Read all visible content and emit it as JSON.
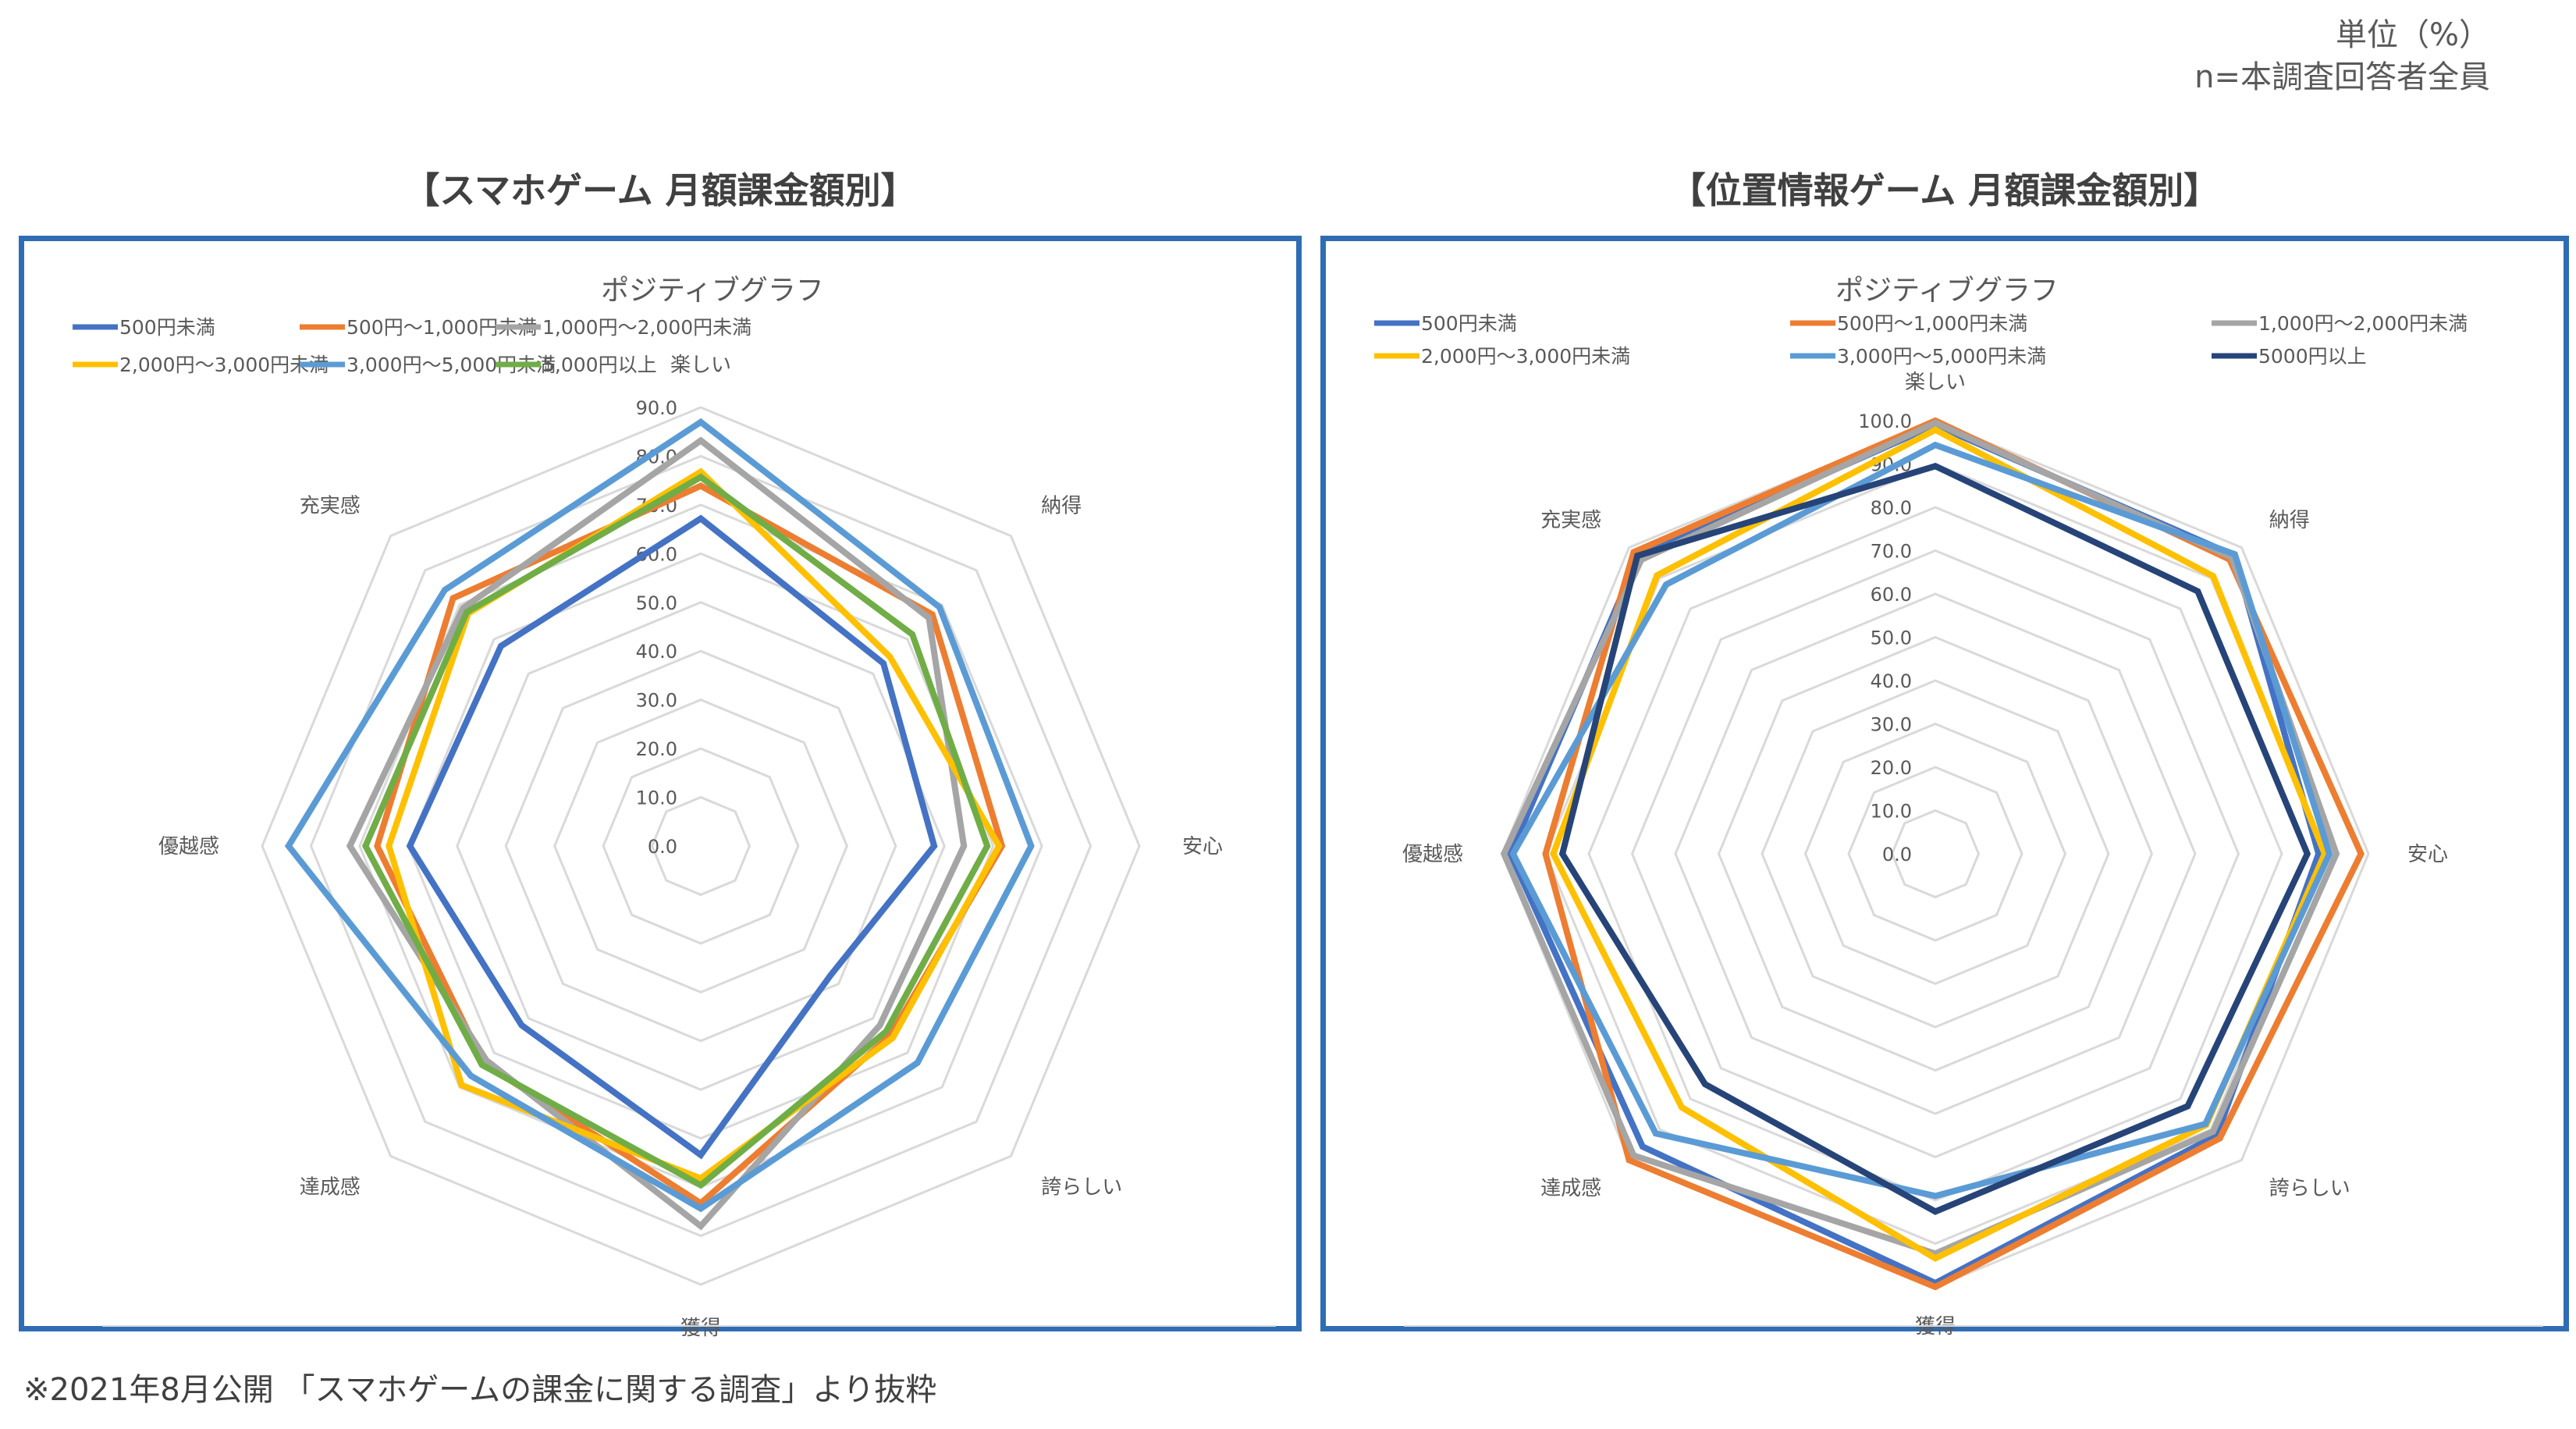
{
  "header": {
    "unit_label": "単位（%）",
    "n_label": "n=本調査回答者全員"
  },
  "footnote": "※2021年8月公開 「スマホゲームの課金に関する調査」より抜粋",
  "chart_data": [
    {
      "type": "radar",
      "section_title": "【スマホゲーム 月額課金額別】",
      "title": "ポジティブグラフ",
      "axes": [
        "楽しい",
        "納得",
        "安心",
        "誇らしい",
        "獲得",
        "達成感",
        "優越感",
        "充実感"
      ],
      "rlim": [
        0,
        90
      ],
      "ticks": [
        "0.0",
        "10.0",
        "20.0",
        "30.0",
        "40.0",
        "50.0",
        "60.0",
        "70.0",
        "80.0",
        "90.0"
      ],
      "tick_values": [
        0,
        10,
        20,
        30,
        40,
        50,
        60,
        70,
        80,
        90
      ],
      "grid": true,
      "legend_position": "top",
      "series": [
        {
          "name": "500円未満",
          "color": "#4472C4",
          "values": [
            67.2,
            53.0,
            47.9,
            37.6,
            63.4,
            52.0,
            59.7,
            58.0
          ]
        },
        {
          "name": "500円～1,000円未満",
          "color": "#ED7D31",
          "values": [
            73.9,
            67.2,
            61.8,
            55.0,
            73.3,
            63.0,
            66.4,
            71.9
          ]
        },
        {
          "name": "1,000円～2,000円未満",
          "color": "#A5A5A5",
          "values": [
            83.2,
            66.2,
            54.0,
            52.0,
            78.0,
            62.2,
            72.0,
            69.0
          ]
        },
        {
          "name": "2,000円～3,000円未満",
          "color": "#FFC000",
          "values": [
            76.8,
            54.9,
            61.2,
            55.7,
            68.2,
            69.4,
            64.0,
            67.5
          ]
        },
        {
          "name": "3,000円～5,000円未満",
          "color": "#5B9BD5",
          "values": [
            87.0,
            69.3,
            67.8,
            62.9,
            74.4,
            66.7,
            84.6,
            74.3
          ]
        },
        {
          "name": "5,000円以上",
          "color": "#70AD47",
          "values": [
            75.7,
            61.4,
            58.8,
            53.8,
            69.6,
            63.5,
            68.8,
            67.9
          ]
        }
      ]
    },
    {
      "type": "radar",
      "section_title": "【位置情報ゲーム 月額課金額別】",
      "title": "ポジティブグラフ",
      "axes": [
        "楽しい",
        "納得",
        "安心",
        "誇らしい",
        "獲得",
        "達成感",
        "優越感",
        "充実感"
      ],
      "rlim": [
        0,
        100
      ],
      "ticks": [
        "0.0",
        "10.0",
        "20.0",
        "30.0",
        "40.0",
        "50.0",
        "60.0",
        "70.0",
        "80.0",
        "90.0",
        "100.0"
      ],
      "tick_values": [
        0,
        10,
        20,
        30,
        40,
        50,
        60,
        70,
        80,
        90,
        100
      ],
      "grid": true,
      "legend_position": "top",
      "series": [
        {
          "name": "500円未満",
          "color": "#4472C4",
          "values": [
            99.0,
            97.5,
            88.5,
            91.9,
            99.1,
            95.6,
            98.1,
            97.0
          ]
        },
        {
          "name": "500円～1,000円未満",
          "color": "#ED7D31",
          "values": [
            100.0,
            96.1,
            98.3,
            92.9,
            100.0,
            100.0,
            90.0,
            98.5
          ]
        },
        {
          "name": "1,000円～2,000円未満",
          "color": "#A5A5A5",
          "values": [
            99.5,
            96.8,
            92.6,
            90.7,
            92.3,
            98.5,
            99.6,
            96.0
          ]
        },
        {
          "name": "2,000円～3,000円未満",
          "color": "#FFC000",
          "values": [
            97.9,
            90.7,
            89.9,
            88.5,
            93.4,
            82.8,
            88.2,
            90.9
          ]
        },
        {
          "name": "3,000円～5,000円未満",
          "color": "#5B9BD5",
          "values": [
            94.4,
            97.8,
            91.0,
            88.2,
            79.0,
            91.3,
            97.5,
            87.9
          ]
        },
        {
          "name": "5000円以上",
          "color": "#264478",
          "values": [
            89.5,
            85.7,
            85.9,
            82.4,
            82.6,
            75.2,
            86.1,
            97.3
          ]
        }
      ]
    }
  ]
}
